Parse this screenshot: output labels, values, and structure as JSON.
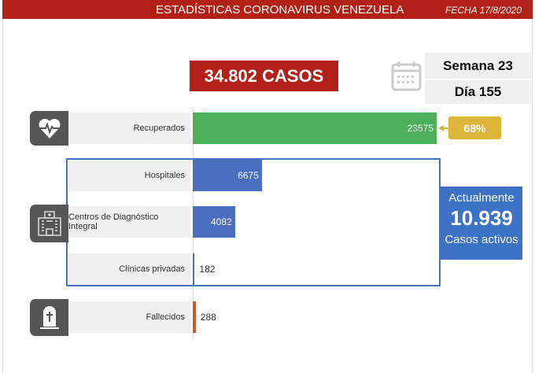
{
  "header": {
    "title": "ESTADÍSTICAS CORONAVIRUS VENEZUELA",
    "date": "FECHA 17/8/2020"
  },
  "total": "34.802 CASOS",
  "semana": "Semana 23",
  "dia": "Día 155",
  "recovered_pct": "68%",
  "active": {
    "line1": "Actualmente",
    "value": "10.939",
    "line2": "Casos activos"
  },
  "colors": {
    "header": "#b22117",
    "recovered": "#4caf5a",
    "active": "#4a6fbf",
    "deaths": "#c0602a",
    "pct": "#ddb53a"
  },
  "chart_data": {
    "type": "bar",
    "orientation": "horizontal",
    "categories": [
      "Recuperados",
      "Hospitales",
      "Centros de Diagnóstico Integral",
      "Clínicas privadas",
      "Fallecidos"
    ],
    "values": [
      23575,
      6675,
      4082,
      182,
      288
    ],
    "value_labels": [
      "23575",
      "6675",
      "4082",
      "182",
      "288"
    ],
    "icons": [
      "heart-pulse-icon",
      "hospital-icon",
      "hospital-icon",
      "hospital-icon",
      "tombstone-icon"
    ]
  }
}
